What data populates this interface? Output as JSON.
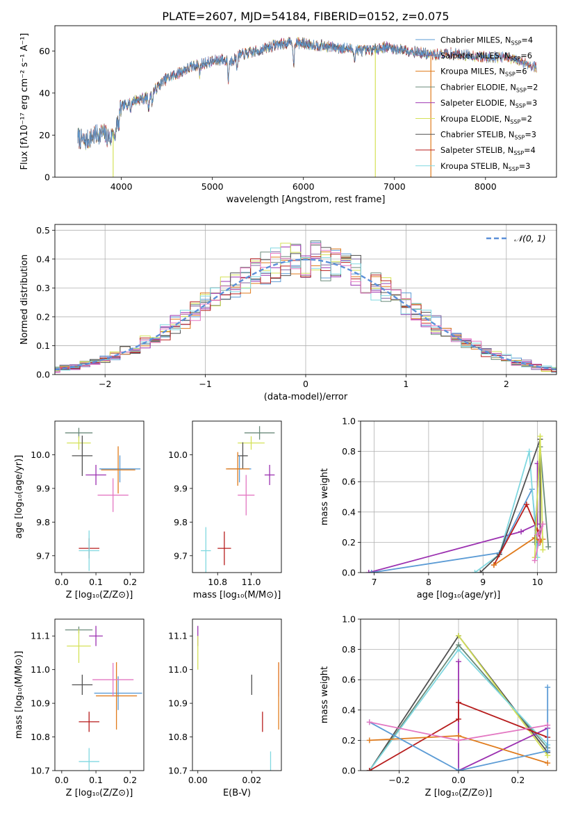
{
  "figure": {
    "title": "PLATE=2607, MJD=54184, FIBERID=0152, z=0.075"
  },
  "colors": {
    "chabrier_miles": "#5b9bd5",
    "salpeter_miles": "#8064a2",
    "kroupa_miles": "#e07b1c",
    "chabrier_elodie": "#6a8a7a",
    "salpeter_elodie": "#9b30b0",
    "kroupa_elodie": "#d4e157",
    "chabrier_stelib": "#505050",
    "salpeter_stelib": "#b71c1c",
    "kroupa_stelib": "#80d8e0",
    "extra_pink": "#e377c2",
    "gaussian": "#5b8fd8",
    "grid": "#b0b0b0"
  },
  "chart_data": [
    {
      "id": "spectrum",
      "type": "line",
      "xlabel": "wavelength [Angstrom, rest frame]",
      "ylabel": "Flux [fλ10⁻¹⁷ erg cm⁻² s⁻¹ A⁻¹]",
      "xlim": [
        3270,
        8780
      ],
      "ylim": [
        0,
        72
      ],
      "xticks": [
        4000,
        5000,
        6000,
        7000,
        8000
      ],
      "yticks": [
        0,
        20,
        40,
        60
      ],
      "grid": false,
      "legend_position": "top-right",
      "legend": [
        {
          "label": "Chabrier MILES, N",
          "sub": "SSP",
          "val": "=4",
          "color": "chabrier_miles"
        },
        {
          "label": "Salpeter MILES, N",
          "sub": "SSP",
          "val": "=6",
          "color": "salpeter_miles"
        },
        {
          "label": "Kroupa MILES, N",
          "sub": "SSP",
          "val": "=6",
          "color": "kroupa_miles"
        },
        {
          "label": "Chabrier ELODIE, N",
          "sub": "SSP",
          "val": "=2",
          "color": "chabrier_elodie"
        },
        {
          "label": "Salpeter ELODIE, N",
          "sub": "SSP",
          "val": "=3",
          "color": "salpeter_elodie"
        },
        {
          "label": "Kroupa ELODIE, N",
          "sub": "SSP",
          "val": "=2",
          "color": "kroupa_elodie"
        },
        {
          "label": "Chabrier STELIB, N",
          "sub": "SSP",
          "val": "=3",
          "color": "chabrier_stelib"
        },
        {
          "label": "Salpeter STELIB, N",
          "sub": "SSP",
          "val": "=4",
          "color": "salpeter_stelib"
        },
        {
          "label": "Kroupa STELIB, N",
          "sub": "SSP",
          "val": "=3",
          "color": "kroupa_stelib"
        }
      ],
      "continuum": [
        [
          3520,
          19
        ],
        [
          3600,
          17
        ],
        [
          3700,
          20
        ],
        [
          3800,
          21
        ],
        [
          3880,
          18
        ],
        [
          3930,
          24
        ],
        [
          4000,
          33
        ],
        [
          4100,
          36
        ],
        [
          4200,
          37
        ],
        [
          4300,
          38
        ],
        [
          4400,
          43
        ],
        [
          4500,
          47
        ],
        [
          4600,
          49
        ],
        [
          4700,
          51
        ],
        [
          4800,
          53
        ],
        [
          4900,
          54
        ],
        [
          5000,
          55
        ],
        [
          5100,
          56
        ],
        [
          5200,
          55
        ],
        [
          5300,
          58
        ],
        [
          5500,
          60
        ],
        [
          5700,
          63
        ],
        [
          5900,
          64
        ],
        [
          6100,
          63
        ],
        [
          6300,
          62
        ],
        [
          6500,
          61
        ],
        [
          6700,
          60
        ],
        [
          6900,
          62
        ],
        [
          7000,
          61
        ],
        [
          7200,
          60
        ],
        [
          7400,
          58
        ],
        [
          7600,
          59
        ],
        [
          7800,
          58
        ],
        [
          8000,
          57
        ],
        [
          8200,
          57
        ],
        [
          8400,
          55
        ],
        [
          8560,
          52
        ]
      ],
      "dropouts": [
        {
          "x": 3910,
          "color": "kroupa_elodie"
        },
        {
          "x": 6790,
          "color": "kroupa_elodie"
        },
        {
          "x": 7400,
          "color": "kroupa_miles"
        }
      ]
    },
    {
      "id": "residuals",
      "type": "line",
      "xlabel": "(data-model)/error",
      "ylabel": "Normed distribution",
      "xlim": [
        -2.5,
        2.5
      ],
      "ylim": [
        0,
        0.52
      ],
      "xticks": [
        -2,
        -1,
        0,
        1,
        2
      ],
      "xticklabels": [
        "−2",
        "−1",
        "0",
        "1",
        "2"
      ],
      "yticks": [
        0.0,
        0.1,
        0.2,
        0.3,
        0.4,
        0.5
      ],
      "grid": true,
      "legend_position": "top-right",
      "legend": [
        {
          "label": "𝒩(0, 1)",
          "color": "gaussian"
        }
      ],
      "bin_width": 0.1
    },
    {
      "id": "z-age",
      "type": "scatter",
      "xlabel": "Z [log₁₀(Z/Z⊙)]",
      "ylabel": "age  [log₁₀(age/yr)]",
      "xlim": [
        -0.02,
        0.24
      ],
      "ylim": [
        9.65,
        10.1
      ],
      "xticks": [
        0.0,
        0.1,
        0.2
      ],
      "yticks": [
        9.7,
        9.8,
        9.9,
        10.0
      ],
      "grid": false,
      "points": [
        {
          "x": 0.05,
          "y": 10.065,
          "xerr": 0.04,
          "yerr": 0.015,
          "color": "chabrier_elodie"
        },
        {
          "x": 0.05,
          "y": 10.035,
          "xerr": 0.035,
          "yerr": 0.02,
          "color": "kroupa_elodie"
        },
        {
          "x": 0.06,
          "y": 9.997,
          "xerr": 0.03,
          "yerr": 0.06,
          "color": "chabrier_stelib"
        },
        {
          "x": 0.1,
          "y": 9.94,
          "xerr": 0.03,
          "yerr": 0.03,
          "color": "salpeter_elodie"
        },
        {
          "x": 0.17,
          "y": 9.958,
          "xerr": 0.06,
          "yerr": 0.04,
          "color": "chabrier_miles"
        },
        {
          "x": 0.165,
          "y": 9.955,
          "xerr": 0.05,
          "yerr": 0.07,
          "color": "kroupa_miles"
        },
        {
          "x": 0.15,
          "y": 9.88,
          "xerr": 0.045,
          "yerr": 0.05,
          "color": "extra_pink"
        },
        {
          "x": 0.08,
          "y": 9.722,
          "xerr": 0.03,
          "yerr": 0.03,
          "color": "salpeter_stelib"
        },
        {
          "x": 0.08,
          "y": 9.715,
          "xerr": 0.03,
          "yerr": 0.06,
          "color": "kroupa_stelib"
        }
      ]
    },
    {
      "id": "mass-age",
      "type": "scatter",
      "xlabel": "mass [log₁₀(M/M⊙)]",
      "ylabel": "",
      "xlim": [
        10.65,
        11.18
      ],
      "ylim": [
        9.65,
        10.1
      ],
      "xticks": [
        10.8,
        11.0
      ],
      "yticks": [
        9.7,
        9.8,
        9.9,
        10.0
      ],
      "grid": false,
      "points": [
        {
          "x": 11.05,
          "y": 10.065,
          "xerr": 0.09,
          "yerr": 0.02,
          "color": "chabrier_elodie"
        },
        {
          "x": 11.0,
          "y": 10.035,
          "xerr": 0.08,
          "yerr": 0.02,
          "color": "kroupa_elodie"
        },
        {
          "x": 10.95,
          "y": 9.997,
          "xerr": 0.03,
          "yerr": 0.04,
          "color": "chabrier_stelib"
        },
        {
          "x": 11.11,
          "y": 9.94,
          "xerr": 0.03,
          "yerr": 0.03,
          "color": "salpeter_elodie"
        },
        {
          "x": 10.93,
          "y": 9.958,
          "xerr": 0.07,
          "yerr": 0.04,
          "color": "chabrier_miles"
        },
        {
          "x": 10.92,
          "y": 9.958,
          "xerr": 0.07,
          "yerr": 0.05,
          "color": "kroupa_miles"
        },
        {
          "x": 10.97,
          "y": 9.88,
          "xerr": 0.05,
          "yerr": 0.06,
          "color": "extra_pink"
        },
        {
          "x": 10.84,
          "y": 9.722,
          "xerr": 0.04,
          "yerr": 0.05,
          "color": "salpeter_stelib"
        },
        {
          "x": 10.73,
          "y": 9.715,
          "xerr": 0.03,
          "yerr": 0.07,
          "color": "kroupa_stelib"
        }
      ]
    },
    {
      "id": "age-weight",
      "type": "line",
      "xlabel": "age  [log₁₀(age/yr)]",
      "ylabel": "mass weight",
      "xlim": [
        6.75,
        10.35
      ],
      "ylim": [
        0,
        1.0
      ],
      "xticks": [
        7,
        8,
        9,
        10
      ],
      "yticks": [
        0.0,
        0.2,
        0.4,
        0.6,
        0.8,
        1.0
      ],
      "grid": true,
      "series": [
        {
          "color": "salpeter_elodie",
          "points": [
            [
              6.9,
              0.0
            ],
            [
              9.7,
              0.27
            ],
            [
              10.0,
              0.32
            ],
            [
              10.0,
              0.72
            ]
          ]
        },
        {
          "color": "chabrier_miles",
          "points": [
            [
              6.95,
              0.0
            ],
            [
              9.3,
              0.13
            ],
            [
              9.9,
              0.55
            ],
            [
              10.0,
              0.18
            ]
          ]
        },
        {
          "color": "kroupa_stelib",
          "points": [
            [
              8.85,
              0.0
            ],
            [
              9.3,
              0.12
            ],
            [
              9.85,
              0.8
            ],
            [
              10.0,
              0.1
            ]
          ]
        },
        {
          "color": "chabrier_stelib",
          "points": [
            [
              8.95,
              0.0
            ],
            [
              9.3,
              0.12
            ],
            [
              10.05,
              0.88
            ],
            [
              10.05,
              0.2
            ]
          ]
        },
        {
          "color": "salpeter_stelib",
          "points": [
            [
              9.2,
              0.05
            ],
            [
              9.8,
              0.45
            ],
            [
              10.0,
              0.28
            ],
            [
              10.05,
              0.22
            ]
          ]
        },
        {
          "color": "kroupa_miles",
          "points": [
            [
              9.2,
              0.05
            ],
            [
              9.95,
              0.23
            ],
            [
              10.05,
              0.2
            ],
            [
              10.1,
              0.22
            ]
          ]
        },
        {
          "color": "chabrier_elodie",
          "points": [
            [
              9.95,
              0.2
            ],
            [
              10.05,
              0.83
            ],
            [
              10.2,
              0.17
            ]
          ]
        },
        {
          "color": "kroupa_elodie",
          "points": [
            [
              9.95,
              0.1
            ],
            [
              10.05,
              0.9
            ],
            [
              10.1,
              0.15
            ]
          ]
        },
        {
          "color": "extra_pink",
          "points": [
            [
              9.95,
              0.08
            ],
            [
              10.1,
              0.32
            ],
            [
              10.0,
              0.25
            ]
          ]
        }
      ]
    },
    {
      "id": "z-mass",
      "type": "scatter",
      "xlabel": "Z [log₁₀(Z/Z⊙)]",
      "ylabel": "mass [log₁₀(M/M⊙)]",
      "xlim": [
        -0.02,
        0.24
      ],
      "ylim": [
        10.7,
        11.15
      ],
      "xticks": [
        0.0,
        0.1,
        0.2
      ],
      "yticks": [
        10.7,
        10.8,
        10.9,
        11.0,
        11.1
      ],
      "grid": false,
      "points": [
        {
          "x": 0.05,
          "y": 11.118,
          "xerr": 0.04,
          "yerr": 0.01,
          "color": "chabrier_elodie"
        },
        {
          "x": 0.05,
          "y": 11.07,
          "xerr": 0.035,
          "yerr": 0.05,
          "color": "kroupa_elodie"
        },
        {
          "x": 0.1,
          "y": 11.1,
          "xerr": 0.02,
          "yerr": 0.03,
          "color": "salpeter_elodie"
        },
        {
          "x": 0.06,
          "y": 10.955,
          "xerr": 0.03,
          "yerr": 0.03,
          "color": "chabrier_stelib"
        },
        {
          "x": 0.165,
          "y": 10.93,
          "xerr": 0.07,
          "yerr": 0.05,
          "color": "chabrier_miles"
        },
        {
          "x": 0.16,
          "y": 10.922,
          "xerr": 0.06,
          "yerr": 0.1,
          "color": "kroupa_miles"
        },
        {
          "x": 0.15,
          "y": 10.97,
          "xerr": 0.06,
          "yerr": 0.05,
          "color": "extra_pink"
        },
        {
          "x": 0.08,
          "y": 10.845,
          "xerr": 0.03,
          "yerr": 0.03,
          "color": "salpeter_stelib"
        },
        {
          "x": 0.08,
          "y": 10.727,
          "xerr": 0.03,
          "yerr": 0.04,
          "color": "kroupa_stelib"
        }
      ]
    },
    {
      "id": "ebv-mass",
      "type": "scatter",
      "xlabel": "E(B-V)",
      "ylabel": "",
      "xlim": [
        -0.002,
        0.031
      ],
      "ylim": [
        10.7,
        11.15
      ],
      "xticks": [
        0.0,
        0.02
      ],
      "yticks": [
        10.7,
        10.8,
        10.9,
        11.0,
        11.1
      ],
      "grid": false,
      "points": [
        {
          "x": 0.0,
          "y": 11.1,
          "xerr": 0,
          "yerr": 0.03,
          "color": "salpeter_elodie"
        },
        {
          "x": 0.0,
          "y": 11.05,
          "xerr": 0,
          "yerr": 0.05,
          "color": "kroupa_elodie"
        },
        {
          "x": 0.02,
          "y": 10.955,
          "xerr": 0,
          "yerr": 0.03,
          "color": "chabrier_stelib"
        },
        {
          "x": 0.03,
          "y": 10.97,
          "xerr": 0,
          "yerr": 0.05,
          "color": "extra_pink"
        },
        {
          "x": 0.03,
          "y": 10.922,
          "xerr": 0,
          "yerr": 0.1,
          "color": "kroupa_miles"
        },
        {
          "x": 0.024,
          "y": 10.845,
          "xerr": 0,
          "yerr": 0.03,
          "color": "salpeter_stelib"
        },
        {
          "x": 0.027,
          "y": 10.727,
          "xerr": 0,
          "yerr": 0.03,
          "color": "kroupa_stelib"
        }
      ]
    },
    {
      "id": "z-weight",
      "type": "line",
      "xlabel": "Z [log₁₀(Z/Z⊙)]",
      "ylabel": "mass weight",
      "xlim": [
        -0.33,
        0.33
      ],
      "ylim": [
        0,
        1.0
      ],
      "xticks": [
        -0.2,
        0.0,
        0.2
      ],
      "xticklabels": [
        "−0.2",
        "0.0",
        "0.2"
      ],
      "yticks": [
        0.0,
        0.2,
        0.4,
        0.6,
        0.8,
        1.0
      ],
      "grid": true,
      "series": [
        {
          "color": "chabrier_stelib",
          "points": [
            [
              -0.3,
              0.0
            ],
            [
              0.0,
              0.89
            ],
            [
              0.3,
              0.12
            ]
          ]
        },
        {
          "color": "chabrier_elodie",
          "points": [
            [
              -0.3,
              0.0
            ],
            [
              0.0,
              0.83
            ],
            [
              0.3,
              0.15
            ]
          ]
        },
        {
          "color": "kroupa_elodie",
          "points": [
            [
              0.0,
              0.89
            ],
            [
              0.3,
              0.1
            ]
          ]
        },
        {
          "color": "kroupa_stelib",
          "points": [
            [
              -0.3,
              0.0
            ],
            [
              0.0,
              0.8
            ],
            [
              0.3,
              0.17
            ]
          ]
        },
        {
          "color": "salpeter_elodie",
          "points": [
            [
              0.0,
              0.72
            ],
            [
              0.0,
              0.0
            ],
            [
              0.3,
              0.28
            ]
          ]
        },
        {
          "color": "salpeter_stelib",
          "points": [
            [
              -0.3,
              0.0
            ],
            [
              0.0,
              0.34
            ],
            [
              0.0,
              0.45
            ],
            [
              0.3,
              0.22
            ]
          ]
        },
        {
          "color": "kroupa_miles",
          "points": [
            [
              -0.3,
              0.2
            ],
            [
              0.0,
              0.23
            ],
            [
              0.3,
              0.05
            ]
          ]
        },
        {
          "color": "chabrier_miles",
          "points": [
            [
              -0.3,
              0.32
            ],
            [
              0.0,
              0.0
            ],
            [
              0.3,
              0.13
            ],
            [
              0.3,
              0.55
            ]
          ]
        },
        {
          "color": "extra_pink",
          "points": [
            [
              -0.3,
              0.32
            ],
            [
              0.0,
              0.2
            ],
            [
              0.3,
              0.3
            ]
          ]
        }
      ]
    }
  ]
}
